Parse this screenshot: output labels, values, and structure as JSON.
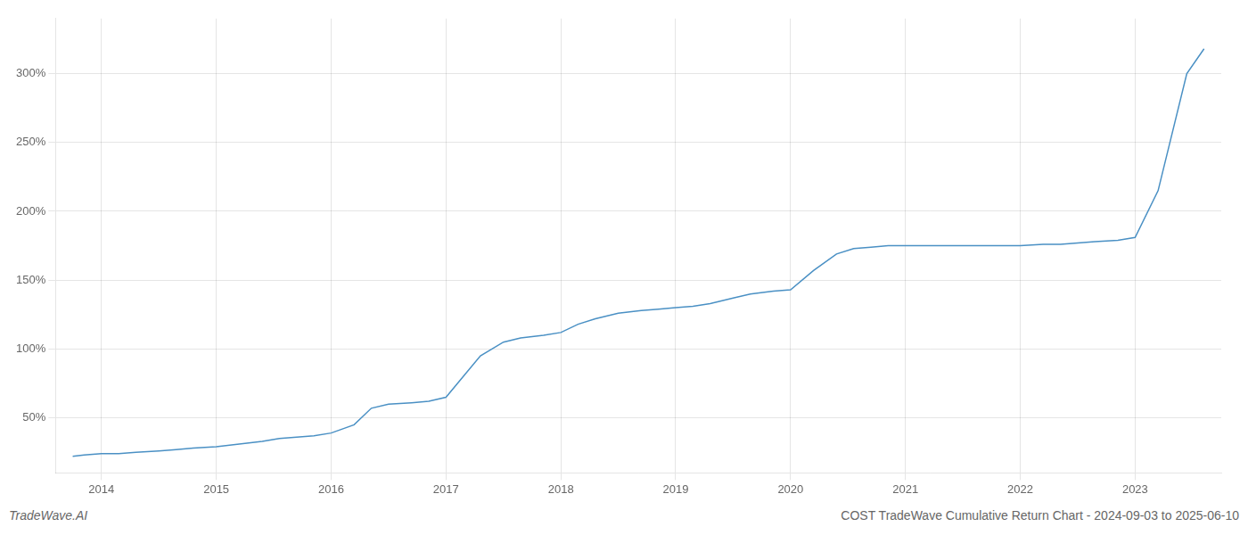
{
  "chart_data": {
    "type": "line",
    "title": "COST TradeWave Cumulative Return Chart - 2024-09-03 to 2025-06-10",
    "annotations": [
      "TradeWave.AI"
    ],
    "color": "#4a90c4",
    "grid": true,
    "x": [
      2013.75,
      2013.85,
      2014.0,
      2014.15,
      2014.3,
      2014.5,
      2014.65,
      2014.8,
      2015.0,
      2015.2,
      2015.4,
      2015.55,
      2015.7,
      2015.85,
      2016.0,
      2016.2,
      2016.35,
      2016.5,
      2016.7,
      2016.85,
      2017.0,
      2017.15,
      2017.3,
      2017.5,
      2017.65,
      2017.85,
      2018.0,
      2018.15,
      2018.3,
      2018.5,
      2018.7,
      2018.85,
      2019.0,
      2019.15,
      2019.3,
      2019.5,
      2019.65,
      2019.85,
      2020.0,
      2020.2,
      2020.4,
      2020.55,
      2020.7,
      2020.85,
      2021.0,
      2021.2,
      2021.4,
      2021.55,
      2021.7,
      2021.85,
      2022.0,
      2022.2,
      2022.35,
      2022.5,
      2022.65,
      2022.85,
      2023.0,
      2023.2,
      2023.45,
      2023.6
    ],
    "values": [
      22,
      23,
      24,
      24,
      25,
      26,
      27,
      28,
      29,
      31,
      33,
      35,
      36,
      37,
      39,
      45,
      57,
      60,
      61,
      62,
      65,
      80,
      95,
      105,
      108,
      110,
      112,
      118,
      122,
      126,
      128,
      129,
      130,
      131,
      133,
      137,
      140,
      142,
      143,
      157,
      169,
      173,
      174,
      175,
      175,
      175,
      175,
      175,
      175,
      175,
      175,
      176,
      176,
      177,
      178,
      179,
      181,
      215,
      300,
      318
    ],
    "xlim": [
      2013.6,
      2023.75
    ],
    "xticks": [
      2014,
      2015,
      2016,
      2017,
      2018,
      2019,
      2020,
      2021,
      2022,
      2023
    ],
    "ylim": [
      10,
      340
    ],
    "yticks": [
      {
        "value": 50,
        "label": "50%"
      },
      {
        "value": 100,
        "label": "100%"
      },
      {
        "value": 150,
        "label": "150%"
      },
      {
        "value": 200,
        "label": "200%"
      },
      {
        "value": 250,
        "label": "250%"
      },
      {
        "value": 300,
        "label": "300%"
      }
    ]
  }
}
